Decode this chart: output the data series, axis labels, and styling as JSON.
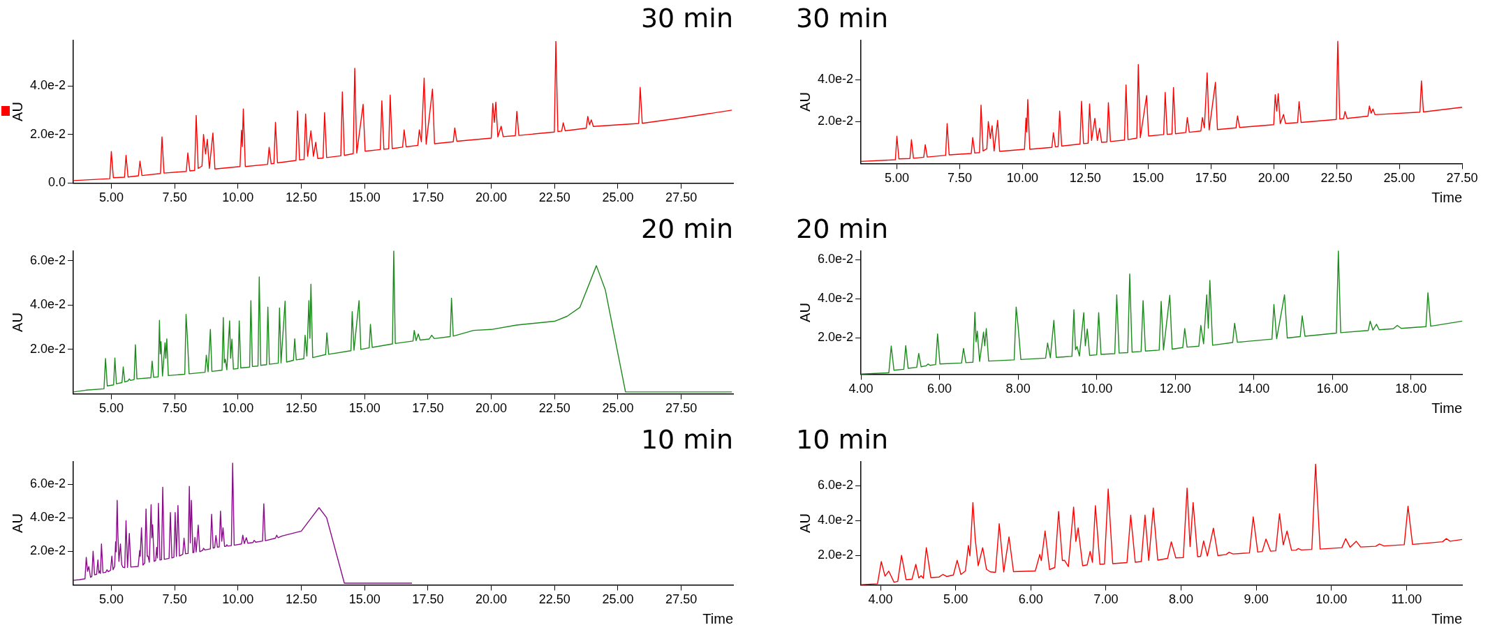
{
  "chart_data": [
    {
      "type": "line",
      "title": "30 min",
      "ylabel": "AU",
      "xlim": [
        3.5,
        29.55
      ],
      "ylim": [
        0,
        0.0588
      ],
      "xticks": [
        {
          "value": 5,
          "label": "5.00"
        },
        {
          "value": 7.5,
          "label": "7.50"
        },
        {
          "value": 10,
          "label": "10.00"
        },
        {
          "value": 12.5,
          "label": "12.50"
        },
        {
          "value": 15,
          "label": "15.00"
        },
        {
          "value": 17.5,
          "label": "17.50"
        },
        {
          "value": 20,
          "label": "20.00"
        },
        {
          "value": 22.5,
          "label": "22.50"
        },
        {
          "value": 25,
          "label": "25.00"
        },
        {
          "value": 27.5,
          "label": "27.50"
        }
      ],
      "yticks": [
        {
          "value": 0,
          "label": "0.0"
        },
        {
          "value": 0.02,
          "label": "2.0e-2"
        },
        {
          "value": 0.04,
          "label": "4.0e-2"
        }
      ],
      "x": [
        3.5,
        4.94,
        5.0,
        5.08,
        5.52,
        5.58,
        5.66,
        6.07,
        6.13,
        6.21,
        6.94,
        7.0,
        7.08,
        7.96,
        8.02,
        8.1,
        8.29,
        8.35,
        8.43,
        8.58,
        8.64,
        8.72,
        8.79,
        8.87,
        9.01,
        9.09,
        10.08,
        10.14,
        10.17,
        10.21,
        10.29,
        11.17,
        11.23,
        11.31,
        11.42,
        11.48,
        11.56,
        12.29,
        12.35,
        12.43,
        12.61,
        12.67,
        12.75,
        12.88,
        12.98,
        13.07,
        13.15,
        13.36,
        13.42,
        13.5,
        14.06,
        14.12,
        14.2,
        14.55,
        14.61,
        14.69,
        14.94,
        15.02,
        15.62,
        15.68,
        15.76,
        15.95,
        16.01,
        16.09,
        16.5,
        16.56,
        16.64,
        17.1,
        17.16,
        17.24,
        17.35,
        17.43,
        17.68,
        17.76,
        18.5,
        18.56,
        18.64,
        20.0,
        20.06,
        20.12,
        20.18,
        20.26,
        20.39,
        20.47,
        20.95,
        21.01,
        21.09,
        22.49,
        22.55,
        22.63,
        22.78,
        22.84,
        22.92,
        23.75,
        23.81,
        23.88,
        23.95,
        24.03,
        25.82,
        25.88,
        25.96,
        27.5,
        29.5
      ],
      "series": [
        {
          "color": "#ff0000",
          "values": [
            0.001,
            0.0018,
            0.013,
            0.0022,
            0.0024,
            0.0114,
            0.0025,
            0.003,
            0.009,
            0.0031,
            0.0039,
            0.019,
            0.0041,
            0.0048,
            0.0124,
            0.005,
            0.0052,
            0.0278,
            0.006,
            0.007,
            0.02,
            0.012,
            0.018,
            0.006,
            0.0206,
            0.0058,
            0.0068,
            0.0217,
            0.015,
            0.0305,
            0.0068,
            0.0077,
            0.0147,
            0.0079,
            0.0081,
            0.025,
            0.0083,
            0.0093,
            0.0297,
            0.0095,
            0.0097,
            0.0284,
            0.011,
            0.0215,
            0.011,
            0.0168,
            0.0101,
            0.0103,
            0.029,
            0.0105,
            0.0112,
            0.0375,
            0.0114,
            0.0121,
            0.0472,
            0.0123,
            0.0324,
            0.0131,
            0.0138,
            0.0339,
            0.0139,
            0.0141,
            0.0362,
            0.0142,
            0.0148,
            0.0219,
            0.0149,
            0.0155,
            0.0219,
            0.017,
            0.0432,
            0.016,
            0.0387,
            0.0162,
            0.017,
            0.0227,
            0.0172,
            0.0185,
            0.0328,
            0.025,
            0.0333,
            0.019,
            0.0234,
            0.0191,
            0.0195,
            0.0295,
            0.0196,
            0.021,
            0.0583,
            0.0212,
            0.0214,
            0.0248,
            0.0215,
            0.0226,
            0.0274,
            0.024,
            0.026,
            0.0233,
            0.0245,
            0.0394,
            0.0246,
            0.0268,
            0.03
          ]
        }
      ]
    },
    {
      "type": "line",
      "title": "30 min",
      "xlabel": "Time",
      "ylabel": "AU",
      "xlim": [
        3.57,
        27.5
      ],
      "ylim": [
        0,
        0.0588
      ],
      "xticks": [
        {
          "value": 5,
          "label": "5.00"
        },
        {
          "value": 7.5,
          "label": "7.50"
        },
        {
          "value": 10,
          "label": "10.00"
        },
        {
          "value": 12.5,
          "label": "12.50"
        },
        {
          "value": 15,
          "label": "15.00"
        },
        {
          "value": 17.5,
          "label": "17.50"
        },
        {
          "value": 20,
          "label": "20.00"
        },
        {
          "value": 22.5,
          "label": "22.50"
        },
        {
          "value": 25,
          "label": "25.00"
        },
        {
          "value": 27.5,
          "label": "27.50"
        }
      ],
      "yticks": [
        {
          "value": 0.02,
          "label": "2.0e-2"
        },
        {
          "value": 0.04,
          "label": "4.0e-2"
        }
      ],
      "x": [
        3.57,
        4.94,
        5.0,
        5.08,
        5.52,
        5.58,
        5.66,
        6.07,
        6.13,
        6.21,
        6.94,
        7.0,
        7.08,
        7.96,
        8.02,
        8.1,
        8.29,
        8.35,
        8.43,
        8.58,
        8.64,
        8.72,
        8.79,
        8.87,
        9.01,
        9.09,
        10.08,
        10.14,
        10.17,
        10.21,
        10.29,
        11.17,
        11.23,
        11.31,
        11.42,
        11.48,
        11.56,
        12.29,
        12.35,
        12.43,
        12.61,
        12.67,
        12.75,
        12.88,
        12.98,
        13.07,
        13.15,
        13.36,
        13.42,
        13.5,
        14.06,
        14.12,
        14.2,
        14.55,
        14.61,
        14.69,
        14.94,
        15.02,
        15.62,
        15.68,
        15.76,
        15.95,
        16.01,
        16.09,
        16.5,
        16.56,
        16.64,
        17.1,
        17.16,
        17.24,
        17.35,
        17.43,
        17.68,
        17.76,
        18.5,
        18.56,
        18.64,
        20.0,
        20.06,
        20.12,
        20.18,
        20.26,
        20.39,
        20.47,
        20.95,
        21.01,
        21.09,
        22.49,
        22.55,
        22.63,
        22.78,
        22.84,
        22.92,
        23.75,
        23.81,
        23.88,
        23.95,
        24.03,
        25.82,
        25.88,
        25.96,
        27.5
      ],
      "series": [
        {
          "color": "#ff0000",
          "values": [
            0.001,
            0.0018,
            0.013,
            0.0022,
            0.0024,
            0.0114,
            0.0025,
            0.003,
            0.009,
            0.0031,
            0.0039,
            0.019,
            0.0041,
            0.0048,
            0.0124,
            0.005,
            0.0052,
            0.0278,
            0.006,
            0.007,
            0.02,
            0.012,
            0.018,
            0.006,
            0.0206,
            0.0058,
            0.0068,
            0.0217,
            0.015,
            0.0305,
            0.0068,
            0.0077,
            0.0147,
            0.0079,
            0.0081,
            0.025,
            0.0083,
            0.0093,
            0.0297,
            0.0095,
            0.0097,
            0.0284,
            0.011,
            0.0215,
            0.011,
            0.0168,
            0.0101,
            0.0103,
            0.029,
            0.0105,
            0.0112,
            0.0375,
            0.0114,
            0.0121,
            0.0472,
            0.0123,
            0.0324,
            0.0131,
            0.0138,
            0.0339,
            0.0139,
            0.0141,
            0.0362,
            0.0142,
            0.0148,
            0.0219,
            0.0149,
            0.0155,
            0.0219,
            0.017,
            0.0432,
            0.016,
            0.0387,
            0.0162,
            0.017,
            0.0227,
            0.0172,
            0.0185,
            0.0328,
            0.025,
            0.0333,
            0.019,
            0.0234,
            0.0191,
            0.0195,
            0.0295,
            0.0196,
            0.021,
            0.0583,
            0.0212,
            0.0214,
            0.0248,
            0.0215,
            0.0226,
            0.0274,
            0.024,
            0.026,
            0.0233,
            0.0245,
            0.0394,
            0.0246,
            0.0268
          ]
        }
      ]
    },
    {
      "type": "line",
      "title": "20 min",
      "ylabel": "AU",
      "xlim": [
        3.5,
        29.55
      ],
      "ylim": [
        0,
        0.0645
      ],
      "xticks": [
        {
          "value": 5,
          "label": "5.00"
        },
        {
          "value": 7.5,
          "label": "7.50"
        },
        {
          "value": 10,
          "label": "10.00"
        },
        {
          "value": 12.5,
          "label": "12.50"
        },
        {
          "value": 15,
          "label": "15.00"
        },
        {
          "value": 17.5,
          "label": "17.50"
        },
        {
          "value": 20,
          "label": "20.00"
        },
        {
          "value": 22.5,
          "label": "22.50"
        },
        {
          "value": 25,
          "label": "25.00"
        },
        {
          "value": 27.5,
          "label": "27.50"
        }
      ],
      "yticks": [
        {
          "value": 0.02,
          "label": "2.0e-2"
        },
        {
          "value": 0.04,
          "label": "4.0e-2"
        },
        {
          "value": 0.06,
          "label": "6.0e-2"
        }
      ],
      "x": [
        3.5,
        4.0,
        4.71,
        4.77,
        4.84,
        5.09,
        5.14,
        5.2,
        5.42,
        5.47,
        5.53,
        5.66,
        5.71,
        5.76,
        5.9,
        5.95,
        6.01,
        6.56,
        6.61,
        6.67,
        6.85,
        6.9,
        6.93,
        6.96,
        7.02,
        7.12,
        7.15,
        7.19,
        7.25,
        7.9,
        7.95,
        8.0,
        8.07,
        8.7,
        8.75,
        8.82,
        8.91,
        8.97,
        9.37,
        9.42,
        9.46,
        9.5,
        9.56,
        9.67,
        9.71,
        9.76,
        9.82,
        10.0,
        10.05,
        10.11,
        10.46,
        10.51,
        10.57,
        10.79,
        10.84,
        10.9,
        11.13,
        11.18,
        11.24,
        11.59,
        11.64,
        11.7,
        11.86,
        11.92,
        12.19,
        12.24,
        12.3,
        12.6,
        12.65,
        12.72,
        12.8,
        12.84,
        12.88,
        12.95,
        13.46,
        13.51,
        13.58,
        14.46,
        14.51,
        14.58,
        14.78,
        14.85,
        15.18,
        15.23,
        15.3,
        16.1,
        16.15,
        16.21,
        16.91,
        16.96,
        17.03,
        17.12,
        17.19,
        17.55,
        17.65,
        17.75,
        18.38,
        18.43,
        18.5,
        19.3,
        20.0,
        21.0,
        22.5,
        23.0,
        23.5,
        24.15,
        24.5,
        25.3,
        29.5
      ],
      "series": [
        {
          "color": "#1a8a1a",
          "values": [
            0.0008,
            0.0016,
            0.0022,
            0.0159,
            0.0035,
            0.004,
            0.0161,
            0.0045,
            0.005,
            0.0121,
            0.0053,
            0.0058,
            0.0067,
            0.006,
            0.0064,
            0.0221,
            0.0067,
            0.0072,
            0.0147,
            0.0074,
            0.0076,
            0.0331,
            0.018,
            0.0235,
            0.008,
            0.023,
            0.016,
            0.0248,
            0.0082,
            0.0088,
            0.0358,
            0.0259,
            0.009,
            0.0097,
            0.0174,
            0.0099,
            0.029,
            0.0101,
            0.0106,
            0.0344,
            0.014,
            0.0156,
            0.0108,
            0.0329,
            0.016,
            0.0246,
            0.0111,
            0.0114,
            0.0329,
            0.0116,
            0.012,
            0.042,
            0.0123,
            0.0125,
            0.0527,
            0.0128,
            0.0131,
            0.0391,
            0.0133,
            0.0138,
            0.0387,
            0.0139,
            0.0418,
            0.0143,
            0.0151,
            0.0248,
            0.0153,
            0.0158,
            0.0264,
            0.017,
            0.042,
            0.025,
            0.0494,
            0.0163,
            0.0177,
            0.0275,
            0.0178,
            0.0194,
            0.0371,
            0.0196,
            0.042,
            0.02,
            0.0207,
            0.0313,
            0.0209,
            0.0225,
            0.0644,
            0.0227,
            0.0238,
            0.0286,
            0.024,
            0.027,
            0.0242,
            0.0247,
            0.0264,
            0.0249,
            0.0258,
            0.0431,
            0.026,
            0.0286,
            0.029,
            0.031,
            0.0327,
            0.035,
            0.039,
            0.0578,
            0.047,
            0.0008,
            0.0008
          ]
        }
      ]
    },
    {
      "type": "line",
      "title": "20 min",
      "xlabel": "Time",
      "ylabel": "AU",
      "xlim": [
        4.0,
        19.3
      ],
      "ylim": [
        0.0015,
        0.0645
      ],
      "xticks": [
        {
          "value": 4,
          "label": "4.00"
        },
        {
          "value": 6,
          "label": "6.00"
        },
        {
          "value": 8,
          "label": "8.00"
        },
        {
          "value": 10,
          "label": "10.00"
        },
        {
          "value": 12,
          "label": "12.00"
        },
        {
          "value": 14,
          "label": "14.00"
        },
        {
          "value": 16,
          "label": "16.00"
        },
        {
          "value": 18,
          "label": "18.00"
        }
      ],
      "yticks": [
        {
          "value": 0.02,
          "label": "2.0e-2"
        },
        {
          "value": 0.04,
          "label": "4.0e-2"
        },
        {
          "value": 0.06,
          "label": "6.0e-2"
        }
      ],
      "x": [
        4.0,
        4.71,
        4.77,
        4.84,
        5.09,
        5.14,
        5.2,
        5.42,
        5.47,
        5.53,
        5.66,
        5.71,
        5.76,
        5.9,
        5.95,
        6.01,
        6.56,
        6.61,
        6.67,
        6.85,
        6.9,
        6.93,
        6.96,
        7.02,
        7.12,
        7.15,
        7.19,
        7.25,
        7.9,
        7.95,
        8.0,
        8.07,
        8.7,
        8.75,
        8.82,
        8.91,
        8.97,
        9.37,
        9.42,
        9.46,
        9.5,
        9.56,
        9.67,
        9.71,
        9.76,
        9.82,
        10.0,
        10.05,
        10.11,
        10.46,
        10.51,
        10.57,
        10.79,
        10.84,
        10.9,
        11.13,
        11.18,
        11.24,
        11.59,
        11.64,
        11.7,
        11.86,
        11.92,
        12.19,
        12.24,
        12.3,
        12.6,
        12.65,
        12.72,
        12.8,
        12.84,
        12.88,
        12.95,
        13.46,
        13.51,
        13.58,
        14.46,
        14.51,
        14.58,
        14.78,
        14.85,
        15.18,
        15.23,
        15.3,
        16.1,
        16.15,
        16.21,
        16.91,
        16.96,
        17.03,
        17.12,
        17.19,
        17.55,
        17.65,
        17.75,
        18.38,
        18.43,
        18.5,
        19.3
      ],
      "series": [
        {
          "color": "#1a8a1a",
          "values": [
            0.0016,
            0.0022,
            0.0159,
            0.0035,
            0.004,
            0.0161,
            0.0045,
            0.005,
            0.0121,
            0.0053,
            0.0058,
            0.0067,
            0.006,
            0.0064,
            0.0221,
            0.0067,
            0.0072,
            0.0147,
            0.0074,
            0.0076,
            0.0331,
            0.018,
            0.0235,
            0.008,
            0.023,
            0.016,
            0.0248,
            0.0082,
            0.0088,
            0.0358,
            0.0259,
            0.009,
            0.0097,
            0.0174,
            0.0099,
            0.029,
            0.0101,
            0.0106,
            0.0344,
            0.014,
            0.0156,
            0.0108,
            0.0329,
            0.016,
            0.0246,
            0.0111,
            0.0114,
            0.0329,
            0.0116,
            0.012,
            0.042,
            0.0123,
            0.0125,
            0.0527,
            0.0128,
            0.0131,
            0.0391,
            0.0133,
            0.0138,
            0.0387,
            0.0139,
            0.0418,
            0.0143,
            0.0151,
            0.0248,
            0.0153,
            0.0158,
            0.0264,
            0.017,
            0.042,
            0.025,
            0.0494,
            0.0163,
            0.0177,
            0.0275,
            0.0178,
            0.0194,
            0.0371,
            0.0196,
            0.042,
            0.02,
            0.0207,
            0.0313,
            0.0209,
            0.0225,
            0.0644,
            0.0227,
            0.0238,
            0.0286,
            0.024,
            0.027,
            0.0242,
            0.0247,
            0.0264,
            0.0249,
            0.0258,
            0.0431,
            0.026,
            0.0286
          ]
        }
      ]
    },
    {
      "type": "line",
      "title": "10 min",
      "xlabel": "Time",
      "ylabel": "AU",
      "xlim": [
        3.5,
        29.55
      ],
      "ylim": [
        0,
        0.0735
      ],
      "xticks": [
        {
          "value": 5,
          "label": "5.00"
        },
        {
          "value": 7.5,
          "label": "7.50"
        },
        {
          "value": 10,
          "label": "10.00"
        },
        {
          "value": 12.5,
          "label": "12.50"
        },
        {
          "value": 15,
          "label": "15.00"
        },
        {
          "value": 17.5,
          "label": "17.50"
        },
        {
          "value": 20,
          "label": "20.00"
        },
        {
          "value": 22.5,
          "label": "22.50"
        },
        {
          "value": 25,
          "label": "25.00"
        },
        {
          "value": 27.5,
          "label": "27.50"
        }
      ],
      "yticks": [
        {
          "value": 0.02,
          "label": "2.0e-2"
        },
        {
          "value": 0.04,
          "label": "4.0e-2"
        },
        {
          "value": 0.06,
          "label": "6.0e-2"
        }
      ],
      "x": [
        3.5,
        3.74,
        3.96,
        4.01,
        4.06,
        4.11,
        4.18,
        4.23,
        4.28,
        4.34,
        4.42,
        4.47,
        4.51,
        4.54,
        4.57,
        4.61,
        4.67,
        4.78,
        4.83,
        4.88,
        4.97,
        5.02,
        5.07,
        5.13,
        5.17,
        5.19,
        5.23,
        5.26,
        5.3,
        5.36,
        5.41,
        5.46,
        5.53,
        5.58,
        5.64,
        5.71,
        5.77,
        6.06,
        6.12,
        6.14,
        6.19,
        6.25,
        6.32,
        6.37,
        6.42,
        6.45,
        6.5,
        6.57,
        6.6,
        6.63,
        6.69,
        6.75,
        6.79,
        6.82,
        6.86,
        6.92,
        6.98,
        7.03,
        7.09,
        7.28,
        7.33,
        7.39,
        7.47,
        7.52,
        7.57,
        7.63,
        7.69,
        7.82,
        7.87,
        7.93,
        8.03,
        8.08,
        8.12,
        8.16,
        8.22,
        8.26,
        8.3,
        8.35,
        8.43,
        8.49,
        8.6,
        8.64,
        8.69,
        8.91,
        8.96,
        9.02,
        9.08,
        9.13,
        9.19,
        9.26,
        9.31,
        9.36,
        9.41,
        9.47,
        9.53,
        9.56,
        9.6,
        9.74,
        9.79,
        9.85,
        10.14,
        10.19,
        10.25,
        10.33,
        10.39,
        10.59,
        10.64,
        10.7,
        10.97,
        11.02,
        11.08,
        11.48,
        11.53,
        11.58,
        11.74,
        12.5,
        12.9,
        13.2,
        13.5,
        14.2,
        16.87
      ],
      "series": [
        {
          "color": "#8b0a8b",
          "values": [
            0.0027,
            0.0031,
            0.0036,
            0.0164,
            0.008,
            0.0109,
            0.0045,
            0.005,
            0.02,
            0.006,
            0.0063,
            0.0148,
            0.007,
            0.0083,
            0.0068,
            0.0244,
            0.0072,
            0.0075,
            0.009,
            0.0078,
            0.0087,
            0.0171,
            0.009,
            0.011,
            0.0257,
            0.0197,
            0.0504,
            0.0296,
            0.014,
            0.0244,
            0.012,
            0.0105,
            0.0102,
            0.0382,
            0.0104,
            0.0306,
            0.0106,
            0.011,
            0.0205,
            0.017,
            0.034,
            0.0118,
            0.013,
            0.0452,
            0.017,
            0.0171,
            0.0135,
            0.0478,
            0.028,
            0.0358,
            0.014,
            0.0145,
            0.0223,
            0.016,
            0.0486,
            0.0148,
            0.015,
            0.0582,
            0.0152,
            0.0158,
            0.0431,
            0.016,
            0.0164,
            0.0431,
            0.017,
            0.0473,
            0.0172,
            0.0182,
            0.0278,
            0.0185,
            0.0187,
            0.0587,
            0.025,
            0.0504,
            0.0192,
            0.0194,
            0.0283,
            0.0196,
            0.0356,
            0.0198,
            0.0205,
            0.0218,
            0.0208,
            0.0214,
            0.0421,
            0.0219,
            0.0222,
            0.0294,
            0.0224,
            0.0226,
            0.0439,
            0.026,
            0.034,
            0.0229,
            0.023,
            0.0239,
            0.0231,
            0.0234,
            0.0725,
            0.0236,
            0.0244,
            0.0296,
            0.0246,
            0.0281,
            0.0248,
            0.0252,
            0.0265,
            0.0254,
            0.0261,
            0.0483,
            0.0263,
            0.0278,
            0.0296,
            0.0281,
            0.0291,
            0.032,
            0.04,
            0.046,
            0.04,
            0.001,
            0.001
          ]
        }
      ]
    },
    {
      "type": "line",
      "title": "10 min",
      "xlabel": "Time",
      "ylabel": "AU",
      "xlim": [
        3.74,
        11.74
      ],
      "ylim": [
        0.003,
        0.074
      ],
      "xticks": [
        {
          "value": 4,
          "label": "4.00"
        },
        {
          "value": 5,
          "label": "5.00"
        },
        {
          "value": 6,
          "label": "6.00"
        },
        {
          "value": 7,
          "label": "7.00"
        },
        {
          "value": 8,
          "label": "8.00"
        },
        {
          "value": 9,
          "label": "9.00"
        },
        {
          "value": 10,
          "label": "10.00"
        },
        {
          "value": 11,
          "label": "11.00"
        }
      ],
      "yticks": [
        {
          "value": 0.02,
          "label": "2.0e-2"
        },
        {
          "value": 0.04,
          "label": "4.0e-2"
        },
        {
          "value": 0.06,
          "label": "6.0e-2"
        }
      ],
      "x": [
        3.74,
        3.96,
        4.01,
        4.06,
        4.11,
        4.18,
        4.23,
        4.28,
        4.34,
        4.42,
        4.47,
        4.51,
        4.54,
        4.57,
        4.61,
        4.67,
        4.78,
        4.83,
        4.88,
        4.97,
        5.02,
        5.07,
        5.13,
        5.17,
        5.19,
        5.23,
        5.26,
        5.3,
        5.36,
        5.41,
        5.46,
        5.53,
        5.58,
        5.64,
        5.71,
        5.77,
        6.06,
        6.12,
        6.14,
        6.19,
        6.25,
        6.32,
        6.37,
        6.42,
        6.45,
        6.5,
        6.57,
        6.6,
        6.63,
        6.69,
        6.75,
        6.79,
        6.82,
        6.86,
        6.92,
        6.98,
        7.03,
        7.09,
        7.28,
        7.33,
        7.39,
        7.47,
        7.52,
        7.57,
        7.63,
        7.69,
        7.82,
        7.87,
        7.93,
        8.03,
        8.08,
        8.12,
        8.16,
        8.22,
        8.26,
        8.3,
        8.35,
        8.43,
        8.49,
        8.6,
        8.64,
        8.69,
        8.91,
        8.96,
        9.02,
        9.08,
        9.13,
        9.19,
        9.26,
        9.31,
        9.36,
        9.41,
        9.47,
        9.53,
        9.56,
        9.6,
        9.74,
        9.79,
        9.85,
        10.14,
        10.19,
        10.25,
        10.33,
        10.39,
        10.59,
        10.64,
        10.7,
        10.97,
        11.02,
        11.08,
        11.48,
        11.53,
        11.58,
        11.74
      ],
      "series": [
        {
          "color": "#ff0000",
          "values": [
            0.0031,
            0.0036,
            0.0164,
            0.008,
            0.0109,
            0.0045,
            0.005,
            0.02,
            0.006,
            0.0063,
            0.0148,
            0.007,
            0.0083,
            0.0068,
            0.0244,
            0.0072,
            0.0075,
            0.009,
            0.0078,
            0.0087,
            0.0171,
            0.009,
            0.011,
            0.0257,
            0.0197,
            0.0504,
            0.0296,
            0.014,
            0.0244,
            0.012,
            0.0105,
            0.0102,
            0.0382,
            0.0104,
            0.0306,
            0.0106,
            0.011,
            0.0205,
            0.017,
            0.034,
            0.0118,
            0.013,
            0.0452,
            0.017,
            0.0171,
            0.0135,
            0.0478,
            0.028,
            0.0358,
            0.014,
            0.0145,
            0.0223,
            0.016,
            0.0486,
            0.0148,
            0.015,
            0.0582,
            0.0152,
            0.0158,
            0.0431,
            0.016,
            0.0164,
            0.0431,
            0.017,
            0.0473,
            0.0172,
            0.0182,
            0.0278,
            0.0185,
            0.0187,
            0.0587,
            0.025,
            0.0504,
            0.0192,
            0.0194,
            0.0283,
            0.0196,
            0.0356,
            0.0198,
            0.0205,
            0.0218,
            0.0208,
            0.0214,
            0.0421,
            0.0219,
            0.0222,
            0.0294,
            0.0224,
            0.0226,
            0.0439,
            0.026,
            0.034,
            0.0229,
            0.023,
            0.0239,
            0.0231,
            0.0234,
            0.0725,
            0.0236,
            0.0244,
            0.0296,
            0.0246,
            0.0281,
            0.0248,
            0.0252,
            0.0265,
            0.0254,
            0.0261,
            0.0483,
            0.0263,
            0.0278,
            0.0296,
            0.0281,
            0.0291
          ]
        }
      ]
    }
  ]
}
